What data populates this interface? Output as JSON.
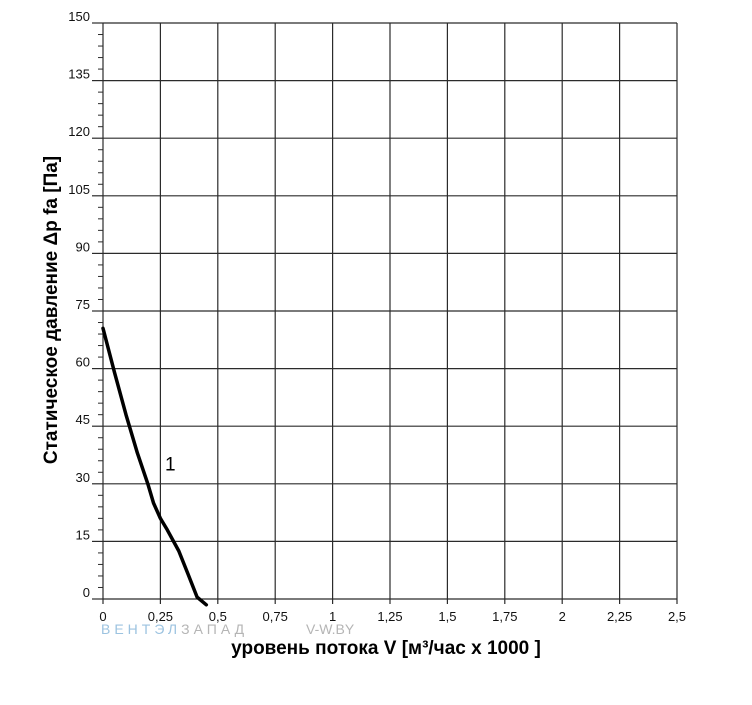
{
  "chart_data": {
    "type": "line",
    "ylabel": "Статическое давление  Δp fa [Па]",
    "xlabel": "уровень потока  V [м³/час x 1000 ]",
    "x_ticks": [
      "0",
      "0,25",
      "0,5",
      "0,75",
      "1",
      "1,25",
      "1,5",
      "1,75",
      "2",
      "2,25",
      "2,5"
    ],
    "y_ticks": [
      "0",
      "15",
      "30",
      "45",
      "60",
      "75",
      "90",
      "105",
      "120",
      "135",
      "150"
    ],
    "xlim": [
      0,
      2.5
    ],
    "ylim": [
      0,
      150
    ],
    "x_grid_step": 0.25,
    "y_grid_step": 15,
    "y_minor_step": 3,
    "grid": true,
    "curve_color": "#000000",
    "grid_color": "#2b2b2b",
    "series": [
      {
        "name": "1",
        "x": [
          0.0,
          0.05,
          0.1,
          0.15,
          0.195,
          0.22,
          0.25,
          0.28,
          0.33,
          0.37,
          0.41,
          0.45
        ],
        "y": [
          70.5,
          59,
          48,
          38,
          30,
          25,
          21,
          18,
          12.5,
          6.5,
          0.5,
          -1.5
        ]
      }
    ]
  },
  "watermark": {
    "company_part1": "ВЕНТЭЛ",
    "company_part2": "ЗАПАД",
    "site": "V-W.BY",
    "color1": "#9cc3e0",
    "color2": "#b5b5b5"
  }
}
